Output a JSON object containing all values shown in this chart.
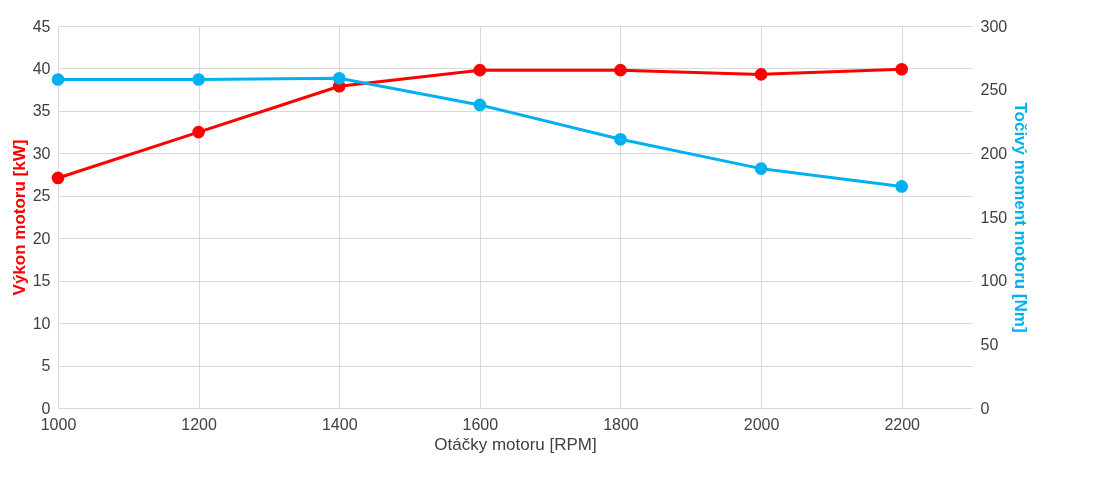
{
  "chart_data": {
    "type": "line",
    "xlabel": "Otáčky motoru [RPM]",
    "ylabel": "Výkon motoru [kW]",
    "y2label": "Točivý moment motoru [Nm]",
    "x": [
      1000,
      1200,
      1400,
      1600,
      1800,
      2000,
      2200
    ],
    "series": [
      {
        "name": null,
        "color": "#ff0000",
        "values": [
          27.1,
          32.5,
          37.9,
          39.8,
          39.8,
          39.3,
          39.9
        ]
      },
      {
        "name": null,
        "color": "#00b0f0",
        "axis": "y2",
        "values": [
          258,
          258,
          259,
          238,
          211,
          188,
          174
        ]
      }
    ],
    "xlim": [
      1000,
      2300
    ],
    "xticks": [
      1000,
      1200,
      1400,
      1600,
      1800,
      2000,
      2200
    ],
    "ylim": [
      0,
      45
    ],
    "yticks": [
      0,
      5,
      10,
      15,
      20,
      25,
      30,
      35,
      40,
      45
    ],
    "y2lim": [
      0,
      300
    ],
    "y2ticks": [
      0,
      50,
      100,
      150,
      200,
      250,
      300
    ],
    "grid": true,
    "marker": "circle",
    "line_style": "solid"
  }
}
